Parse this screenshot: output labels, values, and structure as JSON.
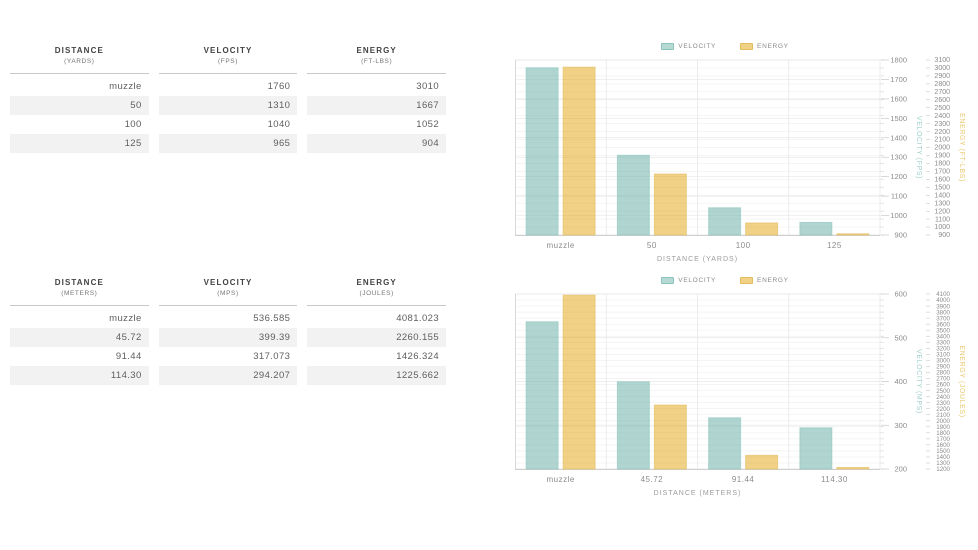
{
  "colors": {
    "velocity_bar": "#6fb3a9",
    "energy_bar": "#e1a30d",
    "velocity_bar_border": "#8cc4bc",
    "energy_bar_border": "#e2bd5e",
    "velocity_swatch": "#b7d9d4",
    "energy_swatch": "#f0d186",
    "velocity_axis_label": "#9fd0ca",
    "energy_axis_label": "#e9c96f",
    "tick_text": "#8c8c8c",
    "legend_text": "#8a8a8a",
    "table_stripe": "#f2f2f2"
  },
  "tables": [
    {
      "name": "yards",
      "columns": [
        {
          "key": "distance",
          "label": "DISTANCE",
          "sub": "(YARDS)"
        },
        {
          "key": "velocity",
          "label": "VELOCITY",
          "sub": "(FPS)"
        },
        {
          "key": "energy",
          "label": "ENERGY",
          "sub": "(FT-LBS)"
        }
      ],
      "rows": [
        [
          "muzzle",
          "1760",
          "3010"
        ],
        [
          "50",
          "1310",
          "1667"
        ],
        [
          "100",
          "1040",
          "1052"
        ],
        [
          "125",
          "965",
          "904"
        ]
      ]
    },
    {
      "name": "meters",
      "columns": [
        {
          "key": "distance",
          "label": "DISTANCE",
          "sub": "(METERS)"
        },
        {
          "key": "velocity",
          "label": "VELOCITY",
          "sub": "(MPS)"
        },
        {
          "key": "energy",
          "label": "ENERGY",
          "sub": "(JOULES)"
        }
      ],
      "rows": [
        [
          "muzzle",
          "536.585",
          "4081.023"
        ],
        [
          "45.72",
          "399.39",
          "2260.155"
        ],
        [
          "91.44",
          "317.073",
          "1426.324"
        ],
        [
          "114.30",
          "294.207",
          "1225.662"
        ]
      ]
    }
  ],
  "chart_data": [
    {
      "type": "bar",
      "categories": [
        "muzzle",
        "50",
        "100",
        "125"
      ],
      "series": [
        {
          "name": "VELOCITY",
          "axis": "velocity",
          "values": [
            1760,
            1310,
            1040,
            965
          ]
        },
        {
          "name": "ENERGY",
          "axis": "energy",
          "values": [
            3010,
            1667,
            1052,
            904
          ]
        }
      ],
      "xlabel": "DISTANCE (YARDS)",
      "axes": {
        "velocity": {
          "label": "VELOCITY (FPS)",
          "min": 900,
          "max": 1800,
          "step": 100,
          "side": "right"
        },
        "energy": {
          "label": "ENERGY (FT-LBS)",
          "min": 900,
          "max": 3100,
          "step": 100,
          "side": "right"
        }
      },
      "legend_position": "top",
      "grid": true
    },
    {
      "type": "bar",
      "categories": [
        "muzzle",
        "45.72",
        "91.44",
        "114.30"
      ],
      "series": [
        {
          "name": "VELOCITY",
          "axis": "velocity",
          "values": [
            536.585,
            399.39,
            317.073,
            294.207
          ]
        },
        {
          "name": "ENERGY",
          "axis": "energy",
          "values": [
            4081.023,
            2260.155,
            1426.324,
            1225.662
          ]
        }
      ],
      "xlabel": "DISTANCE (METERS)",
      "axes": {
        "velocity": {
          "label": "VELOCITY (MPS)",
          "min": 200,
          "max": 600,
          "step": 100,
          "side": "right"
        },
        "energy": {
          "label": "ENERGY (JOULES)",
          "min": 1200,
          "max": 4100,
          "step": 100,
          "side": "right"
        }
      },
      "legend_position": "top",
      "grid": true
    }
  ]
}
